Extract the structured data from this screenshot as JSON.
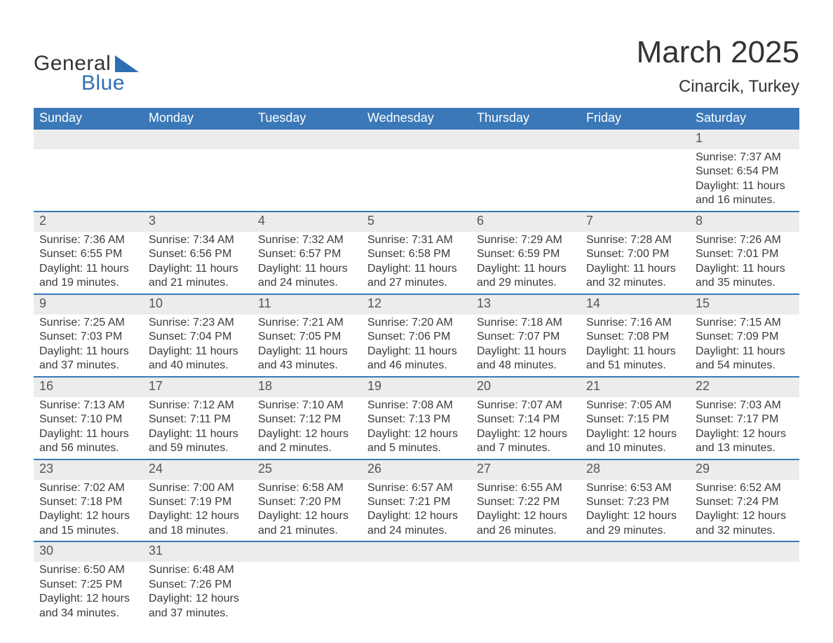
{
  "logo": {
    "word1": "General",
    "word2": "Blue",
    "text_color": "#333333",
    "accent_color": "#2e6fb3"
  },
  "header": {
    "title": "March 2025",
    "location": "Cinarcik, Turkey"
  },
  "calendar": {
    "header_bg": "#3a78b8",
    "header_text_color": "#ffffff",
    "daynum_bg": "#ececec",
    "row_border_color": "#3a78b8",
    "text_color": "#3a3a3a",
    "columns": [
      "Sunday",
      "Monday",
      "Tuesday",
      "Wednesday",
      "Thursday",
      "Friday",
      "Saturday"
    ],
    "weeks": [
      [
        {
          "day": "",
          "lines": []
        },
        {
          "day": "",
          "lines": []
        },
        {
          "day": "",
          "lines": []
        },
        {
          "day": "",
          "lines": []
        },
        {
          "day": "",
          "lines": []
        },
        {
          "day": "",
          "lines": []
        },
        {
          "day": "1",
          "lines": [
            "Sunrise: 7:37 AM",
            "Sunset: 6:54 PM",
            "Daylight: 11 hours and 16 minutes."
          ]
        }
      ],
      [
        {
          "day": "2",
          "lines": [
            "Sunrise: 7:36 AM",
            "Sunset: 6:55 PM",
            "Daylight: 11 hours and 19 minutes."
          ]
        },
        {
          "day": "3",
          "lines": [
            "Sunrise: 7:34 AM",
            "Sunset: 6:56 PM",
            "Daylight: 11 hours and 21 minutes."
          ]
        },
        {
          "day": "4",
          "lines": [
            "Sunrise: 7:32 AM",
            "Sunset: 6:57 PM",
            "Daylight: 11 hours and 24 minutes."
          ]
        },
        {
          "day": "5",
          "lines": [
            "Sunrise: 7:31 AM",
            "Sunset: 6:58 PM",
            "Daylight: 11 hours and 27 minutes."
          ]
        },
        {
          "day": "6",
          "lines": [
            "Sunrise: 7:29 AM",
            "Sunset: 6:59 PM",
            "Daylight: 11 hours and 29 minutes."
          ]
        },
        {
          "day": "7",
          "lines": [
            "Sunrise: 7:28 AM",
            "Sunset: 7:00 PM",
            "Daylight: 11 hours and 32 minutes."
          ]
        },
        {
          "day": "8",
          "lines": [
            "Sunrise: 7:26 AM",
            "Sunset: 7:01 PM",
            "Daylight: 11 hours and 35 minutes."
          ]
        }
      ],
      [
        {
          "day": "9",
          "lines": [
            "Sunrise: 7:25 AM",
            "Sunset: 7:03 PM",
            "Daylight: 11 hours and 37 minutes."
          ]
        },
        {
          "day": "10",
          "lines": [
            "Sunrise: 7:23 AM",
            "Sunset: 7:04 PM",
            "Daylight: 11 hours and 40 minutes."
          ]
        },
        {
          "day": "11",
          "lines": [
            "Sunrise: 7:21 AM",
            "Sunset: 7:05 PM",
            "Daylight: 11 hours and 43 minutes."
          ]
        },
        {
          "day": "12",
          "lines": [
            "Sunrise: 7:20 AM",
            "Sunset: 7:06 PM",
            "Daylight: 11 hours and 46 minutes."
          ]
        },
        {
          "day": "13",
          "lines": [
            "Sunrise: 7:18 AM",
            "Sunset: 7:07 PM",
            "Daylight: 11 hours and 48 minutes."
          ]
        },
        {
          "day": "14",
          "lines": [
            "Sunrise: 7:16 AM",
            "Sunset: 7:08 PM",
            "Daylight: 11 hours and 51 minutes."
          ]
        },
        {
          "day": "15",
          "lines": [
            "Sunrise: 7:15 AM",
            "Sunset: 7:09 PM",
            "Daylight: 11 hours and 54 minutes."
          ]
        }
      ],
      [
        {
          "day": "16",
          "lines": [
            "Sunrise: 7:13 AM",
            "Sunset: 7:10 PM",
            "Daylight: 11 hours and 56 minutes."
          ]
        },
        {
          "day": "17",
          "lines": [
            "Sunrise: 7:12 AM",
            "Sunset: 7:11 PM",
            "Daylight: 11 hours and 59 minutes."
          ]
        },
        {
          "day": "18",
          "lines": [
            "Sunrise: 7:10 AM",
            "Sunset: 7:12 PM",
            "Daylight: 12 hours and 2 minutes."
          ]
        },
        {
          "day": "19",
          "lines": [
            "Sunrise: 7:08 AM",
            "Sunset: 7:13 PM",
            "Daylight: 12 hours and 5 minutes."
          ]
        },
        {
          "day": "20",
          "lines": [
            "Sunrise: 7:07 AM",
            "Sunset: 7:14 PM",
            "Daylight: 12 hours and 7 minutes."
          ]
        },
        {
          "day": "21",
          "lines": [
            "Sunrise: 7:05 AM",
            "Sunset: 7:15 PM",
            "Daylight: 12 hours and 10 minutes."
          ]
        },
        {
          "day": "22",
          "lines": [
            "Sunrise: 7:03 AM",
            "Sunset: 7:17 PM",
            "Daylight: 12 hours and 13 minutes."
          ]
        }
      ],
      [
        {
          "day": "23",
          "lines": [
            "Sunrise: 7:02 AM",
            "Sunset: 7:18 PM",
            "Daylight: 12 hours and 15 minutes."
          ]
        },
        {
          "day": "24",
          "lines": [
            "Sunrise: 7:00 AM",
            "Sunset: 7:19 PM",
            "Daylight: 12 hours and 18 minutes."
          ]
        },
        {
          "day": "25",
          "lines": [
            "Sunrise: 6:58 AM",
            "Sunset: 7:20 PM",
            "Daylight: 12 hours and 21 minutes."
          ]
        },
        {
          "day": "26",
          "lines": [
            "Sunrise: 6:57 AM",
            "Sunset: 7:21 PM",
            "Daylight: 12 hours and 24 minutes."
          ]
        },
        {
          "day": "27",
          "lines": [
            "Sunrise: 6:55 AM",
            "Sunset: 7:22 PM",
            "Daylight: 12 hours and 26 minutes."
          ]
        },
        {
          "day": "28",
          "lines": [
            "Sunrise: 6:53 AM",
            "Sunset: 7:23 PM",
            "Daylight: 12 hours and 29 minutes."
          ]
        },
        {
          "day": "29",
          "lines": [
            "Sunrise: 6:52 AM",
            "Sunset: 7:24 PM",
            "Daylight: 12 hours and 32 minutes."
          ]
        }
      ],
      [
        {
          "day": "30",
          "lines": [
            "Sunrise: 6:50 AM",
            "Sunset: 7:25 PM",
            "Daylight: 12 hours and 34 minutes."
          ]
        },
        {
          "day": "31",
          "lines": [
            "Sunrise: 6:48 AM",
            "Sunset: 7:26 PM",
            "Daylight: 12 hours and 37 minutes."
          ]
        },
        {
          "day": "",
          "lines": []
        },
        {
          "day": "",
          "lines": []
        },
        {
          "day": "",
          "lines": []
        },
        {
          "day": "",
          "lines": []
        },
        {
          "day": "",
          "lines": []
        }
      ]
    ]
  }
}
